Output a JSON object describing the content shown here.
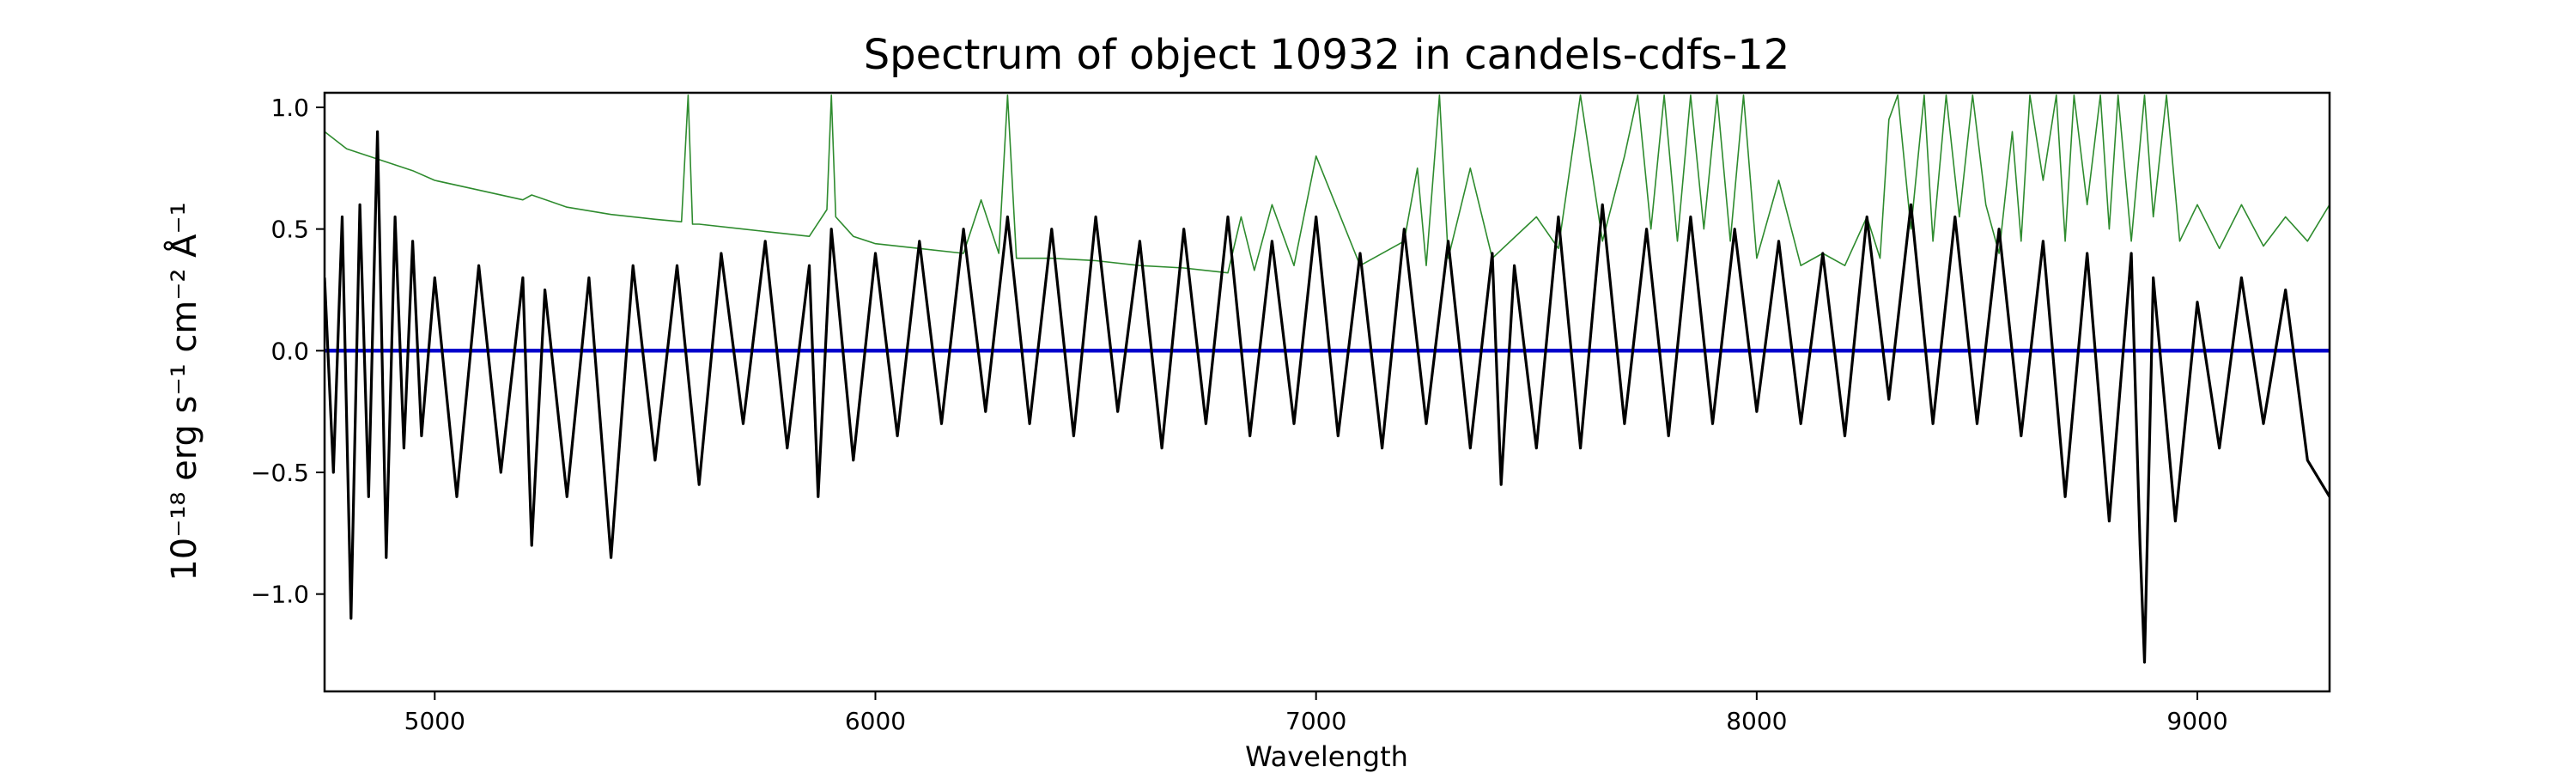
{
  "chart_data": {
    "type": "line",
    "title": "Spectrum of object 10932 in candels-cdfs-12",
    "xlabel": "Wavelength",
    "ylabel": "10⁻¹⁸ erg s⁻¹ cm⁻² Å⁻¹",
    "xlim": [
      4750,
      9300
    ],
    "ylim": [
      -1.4,
      1.06
    ],
    "xticks": [
      5000,
      6000,
      7000,
      8000,
      9000
    ],
    "xtick_labels": [
      "5000",
      "6000",
      "7000",
      "8000",
      "9000"
    ],
    "yticks": [
      1.0,
      0.5,
      0.0,
      -0.5,
      -1.0
    ],
    "ytick_labels": [
      "1.0",
      "0.5",
      "0.0",
      "−0.5",
      "−1.0"
    ],
    "grid": false,
    "series": [
      {
        "role": "error",
        "color": "#2e8b2e",
        "x": [
          4750,
          4800,
          4850,
          4900,
          4950,
          5000,
          5100,
          5200,
          5220,
          5300,
          5400,
          5500,
          5560,
          5575,
          5585,
          5600,
          5700,
          5800,
          5850,
          5890,
          5900,
          5910,
          5950,
          6000,
          6100,
          6200,
          6240,
          6280,
          6300,
          6320,
          6400,
          6500,
          6600,
          6700,
          6800,
          6830,
          6860,
          6900,
          6950,
          7000,
          7100,
          7200,
          7230,
          7250,
          7280,
          7300,
          7350,
          7400,
          7500,
          7550,
          7600,
          7650,
          7700,
          7730,
          7760,
          7790,
          7820,
          7850,
          7880,
          7910,
          7940,
          7970,
          8000,
          8050,
          8100,
          8150,
          8200,
          8250,
          8280,
          8300,
          8320,
          8350,
          8380,
          8400,
          8430,
          8460,
          8490,
          8520,
          8550,
          8580,
          8600,
          8620,
          8650,
          8680,
          8700,
          8720,
          8750,
          8780,
          8800,
          8820,
          8850,
          8880,
          8900,
          8930,
          8960,
          9000,
          9050,
          9100,
          9150,
          9200,
          9250,
          9300
        ],
        "y": [
          0.9,
          0.83,
          0.8,
          0.77,
          0.74,
          0.7,
          0.66,
          0.62,
          0.64,
          0.59,
          0.56,
          0.54,
          0.53,
          1.05,
          0.52,
          0.52,
          0.5,
          0.48,
          0.47,
          0.58,
          1.05,
          0.55,
          0.47,
          0.44,
          0.42,
          0.4,
          0.62,
          0.4,
          1.05,
          0.38,
          0.38,
          0.37,
          0.35,
          0.34,
          0.32,
          0.55,
          0.33,
          0.6,
          0.35,
          0.8,
          0.35,
          0.45,
          0.75,
          0.35,
          1.05,
          0.38,
          0.75,
          0.38,
          0.55,
          0.42,
          1.05,
          0.45,
          0.8,
          1.05,
          0.5,
          1.05,
          0.45,
          1.05,
          0.5,
          1.05,
          0.45,
          1.05,
          0.38,
          0.7,
          0.35,
          0.4,
          0.35,
          0.55,
          0.38,
          0.95,
          1.05,
          0.5,
          1.05,
          0.45,
          1.05,
          0.55,
          1.05,
          0.6,
          0.4,
          0.9,
          0.45,
          1.05,
          0.7,
          1.05,
          0.45,
          1.05,
          0.6,
          1.05,
          0.5,
          1.05,
          0.45,
          1.05,
          0.55,
          1.05,
          0.45,
          0.6,
          0.42,
          0.6,
          0.43,
          0.55,
          0.45,
          0.6
        ]
      },
      {
        "role": "model",
        "color": "#0000cc",
        "x": [
          4750,
          9300
        ],
        "y": [
          0.0,
          0.0
        ]
      },
      {
        "role": "flux",
        "color": "#000000",
        "x": [
          4750,
          4770,
          4790,
          4810,
          4830,
          4850,
          4870,
          4890,
          4910,
          4930,
          4950,
          4970,
          5000,
          5050,
          5100,
          5150,
          5200,
          5220,
          5250,
          5300,
          5350,
          5400,
          5450,
          5500,
          5550,
          5600,
          5650,
          5700,
          5750,
          5800,
          5850,
          5870,
          5900,
          5950,
          6000,
          6050,
          6100,
          6150,
          6200,
          6250,
          6300,
          6350,
          6400,
          6450,
          6500,
          6550,
          6600,
          6650,
          6700,
          6750,
          6800,
          6850,
          6900,
          6950,
          7000,
          7050,
          7100,
          7150,
          7200,
          7250,
          7300,
          7350,
          7400,
          7420,
          7450,
          7500,
          7550,
          7600,
          7650,
          7700,
          7750,
          7800,
          7850,
          7900,
          7950,
          8000,
          8050,
          8100,
          8150,
          8200,
          8250,
          8300,
          8350,
          8400,
          8450,
          8500,
          8550,
          8600,
          8650,
          8700,
          8750,
          8800,
          8850,
          8870,
          8880,
          8900,
          8950,
          9000,
          9050,
          9100,
          9150,
          9200,
          9250,
          9300
        ],
        "y": [
          0.3,
          -0.5,
          0.55,
          -1.1,
          0.6,
          -0.6,
          0.9,
          -0.85,
          0.55,
          -0.4,
          0.45,
          -0.35,
          0.3,
          -0.6,
          0.35,
          -0.5,
          0.3,
          -0.8,
          0.25,
          -0.6,
          0.3,
          -0.85,
          0.35,
          -0.45,
          0.35,
          -0.55,
          0.4,
          -0.3,
          0.45,
          -0.4,
          0.35,
          -0.6,
          0.5,
          -0.45,
          0.4,
          -0.35,
          0.45,
          -0.3,
          0.5,
          -0.25,
          0.55,
          -0.3,
          0.5,
          -0.35,
          0.55,
          -0.25,
          0.45,
          -0.4,
          0.5,
          -0.3,
          0.55,
          -0.35,
          0.45,
          -0.3,
          0.55,
          -0.35,
          0.4,
          -0.4,
          0.5,
          -0.3,
          0.45,
          -0.4,
          0.4,
          -0.55,
          0.35,
          -0.4,
          0.55,
          -0.4,
          0.6,
          -0.3,
          0.5,
          -0.35,
          0.55,
          -0.3,
          0.5,
          -0.25,
          0.45,
          -0.3,
          0.4,
          -0.35,
          0.55,
          -0.2,
          0.6,
          -0.3,
          0.55,
          -0.3,
          0.5,
          -0.35,
          0.45,
          -0.6,
          0.4,
          -0.7,
          0.4,
          -0.8,
          -1.28,
          0.3,
          -0.7,
          0.2,
          -0.4,
          0.3,
          -0.3,
          0.25,
          -0.45,
          -0.6
        ]
      }
    ]
  }
}
